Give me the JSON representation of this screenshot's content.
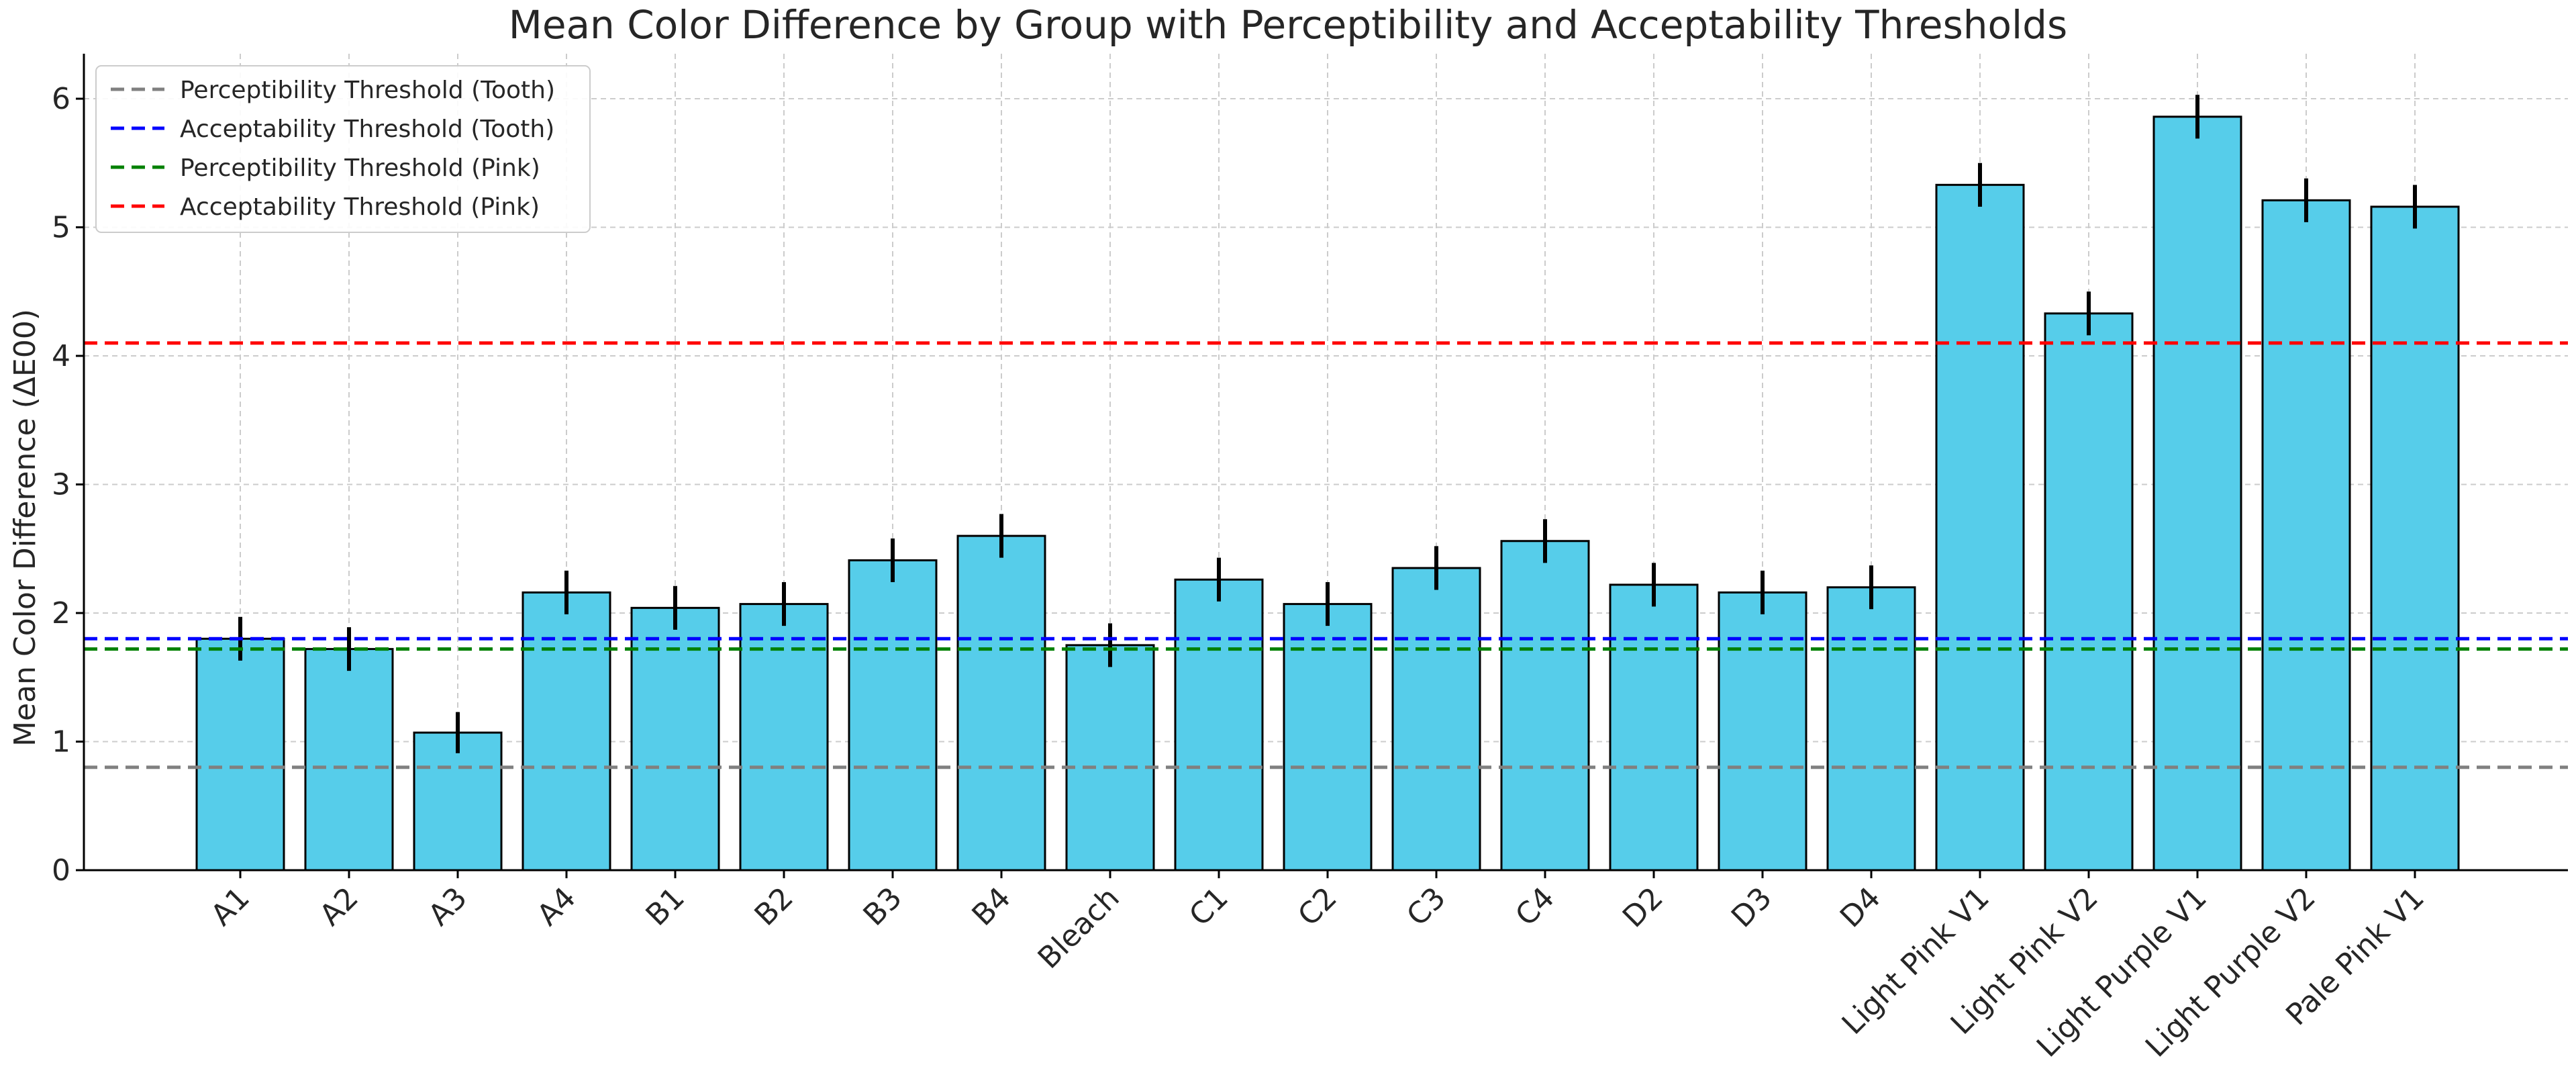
{
  "chart_data": {
    "type": "bar",
    "title": "Mean Color Difference by Group with Perceptibility and Acceptability Thresholds",
    "xlabel": "",
    "ylabel": "Mean Color Difference (ΔE00)",
    "ylim": [
      0,
      6.35
    ],
    "yticks": [
      0,
      1,
      2,
      3,
      4,
      5,
      6
    ],
    "grid": true,
    "bar_color": "#56cdea",
    "bar_edge_color": "#000000",
    "categories": [
      "A1",
      "A2",
      "A3",
      "A4",
      "B1",
      "B2",
      "B3",
      "B4",
      "Bleach",
      "C1",
      "C2",
      "C3",
      "C4",
      "D2",
      "D3",
      "D4",
      "Light Pink V1",
      "Light Pink V2",
      "Light Purple V1",
      "Light Purple V2",
      "Pale Pink V1"
    ],
    "values": [
      1.8,
      1.72,
      1.07,
      2.16,
      2.04,
      2.07,
      2.41,
      2.6,
      1.75,
      2.26,
      2.07,
      2.35,
      2.56,
      2.22,
      2.16,
      2.2,
      5.33,
      4.33,
      5.86,
      5.21,
      5.16
    ],
    "errors": [
      0.17,
      0.17,
      0.16,
      0.17,
      0.17,
      0.17,
      0.17,
      0.17,
      0.17,
      0.17,
      0.17,
      0.17,
      0.17,
      0.17,
      0.17,
      0.17,
      0.17,
      0.17,
      0.17,
      0.17,
      0.17
    ],
    "thresholds": [
      {
        "name": "Perceptibility Threshold (Tooth)",
        "value": 0.8,
        "color": "#808080"
      },
      {
        "name": "Acceptability Threshold (Tooth)",
        "value": 1.8,
        "color": "#0000ff"
      },
      {
        "name": "Perceptibility Threshold (Pink)",
        "value": 1.72,
        "color": "#008000"
      },
      {
        "name": "Acceptability Threshold (Pink)",
        "value": 4.1,
        "color": "#ff0000"
      }
    ],
    "legend_position": "top-left"
  }
}
